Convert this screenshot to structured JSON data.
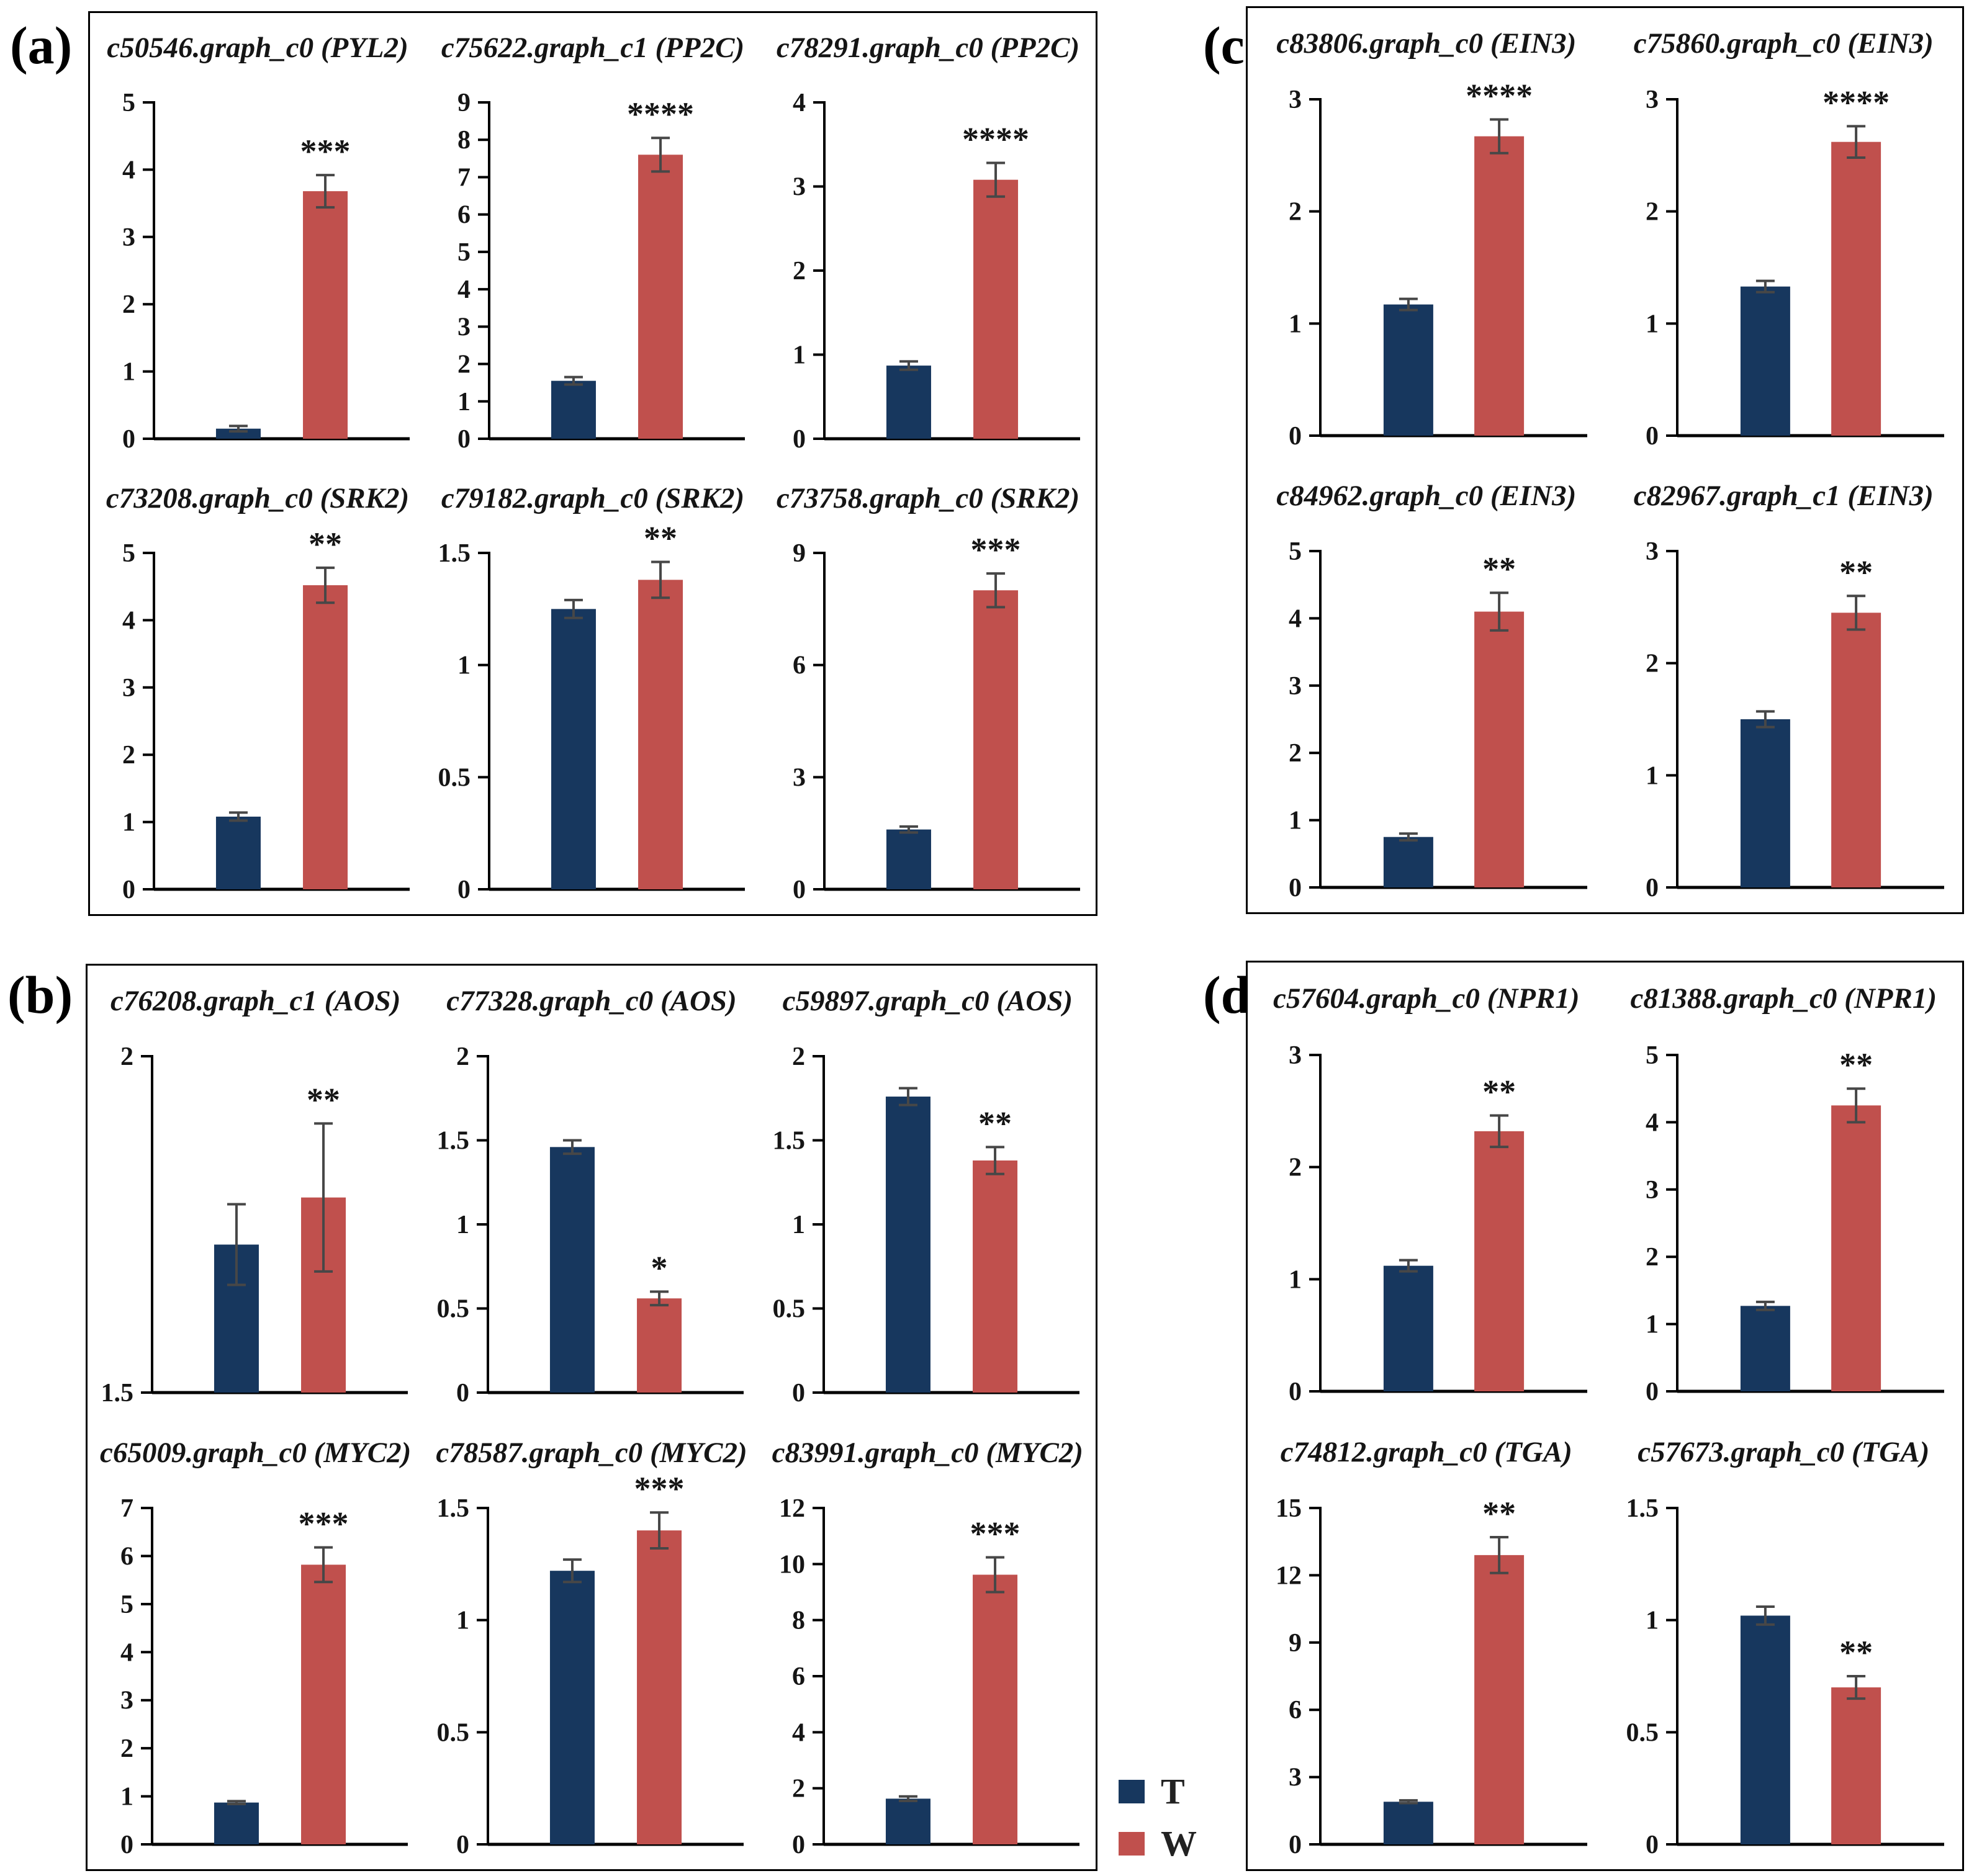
{
  "figure": {
    "panels": [
      {
        "label": "(a)",
        "columns": 3,
        "chart_indexes": [
          0,
          1,
          2,
          3,
          4,
          5
        ]
      },
      {
        "label": "(b)",
        "columns": 3,
        "chart_indexes": [
          6,
          7,
          8,
          9,
          10,
          11
        ]
      },
      {
        "label": "(c)",
        "columns": 2,
        "chart_indexes": [
          12,
          13,
          14,
          15
        ]
      },
      {
        "label": "(d)",
        "columns": 2,
        "chart_indexes": [
          16,
          17,
          18,
          19
        ]
      }
    ],
    "legend": {
      "items": [
        {
          "label": "T",
          "color": "#17375e"
        },
        {
          "label": "W",
          "color": "#c0504d"
        }
      ]
    },
    "colors": {
      "bar_t": "#17375e",
      "bar_w": "#c0504d",
      "error_bar": "#474747",
      "axis": "#000000",
      "text": "#151515"
    }
  },
  "chart_data": [
    {
      "panel": "a",
      "type": "bar",
      "title": "c50546.graph_c0 (PYL2)",
      "categories": [
        "T",
        "W"
      ],
      "series": [
        {
          "name": "T",
          "value": 0.15,
          "err": 0.04
        },
        {
          "name": "W",
          "value": 3.68,
          "err": 0.24
        }
      ],
      "significance": "***",
      "sig_on": "W",
      "ylim": [
        0,
        5
      ],
      "yticks": [
        0,
        1,
        2,
        3,
        4,
        5
      ]
    },
    {
      "panel": "a",
      "type": "bar",
      "title": "c75622.graph_c1 (PP2C)",
      "categories": [
        "T",
        "W"
      ],
      "series": [
        {
          "name": "T",
          "value": 1.55,
          "err": 0.1
        },
        {
          "name": "W",
          "value": 7.6,
          "err": 0.45
        }
      ],
      "significance": "****",
      "sig_on": "W",
      "ylim": [
        0,
        9
      ],
      "yticks": [
        0,
        1,
        2,
        3,
        4,
        5,
        6,
        7,
        8,
        9
      ]
    },
    {
      "panel": "a",
      "type": "bar",
      "title": "c78291.graph_c0 (PP2C)",
      "categories": [
        "T",
        "W"
      ],
      "series": [
        {
          "name": "T",
          "value": 0.87,
          "err": 0.05
        },
        {
          "name": "W",
          "value": 3.08,
          "err": 0.2
        }
      ],
      "significance": "****",
      "sig_on": "W",
      "ylim": [
        0,
        4
      ],
      "yticks": [
        0,
        1,
        2,
        3,
        4
      ]
    },
    {
      "panel": "a",
      "type": "bar",
      "title": "c73208.graph_c0 (SRK2)",
      "categories": [
        "T",
        "W"
      ],
      "series": [
        {
          "name": "T",
          "value": 1.08,
          "err": 0.06
        },
        {
          "name": "W",
          "value": 4.52,
          "err": 0.26
        }
      ],
      "significance": "**",
      "sig_on": "W",
      "ylim": [
        0,
        5
      ],
      "yticks": [
        0,
        1,
        2,
        3,
        4,
        5
      ]
    },
    {
      "panel": "a",
      "type": "bar",
      "title": "c79182.graph_c0 (SRK2)",
      "categories": [
        "T",
        "W"
      ],
      "series": [
        {
          "name": "T",
          "value": 1.25,
          "err": 0.04
        },
        {
          "name": "W",
          "value": 1.38,
          "err": 0.08
        }
      ],
      "significance": "**",
      "sig_on": "W",
      "ylim": [
        0,
        1.5
      ],
      "yticks": [
        0,
        0.5,
        1,
        1.5
      ]
    },
    {
      "panel": "a",
      "type": "bar",
      "title": "c73758.graph_c0 (SRK2)",
      "categories": [
        "T",
        "W"
      ],
      "series": [
        {
          "name": "T",
          "value": 1.6,
          "err": 0.08
        },
        {
          "name": "W",
          "value": 8.0,
          "err": 0.45
        }
      ],
      "significance": "***",
      "sig_on": "W",
      "ylim": [
        0,
        9
      ],
      "yticks": [
        0,
        3,
        6,
        9
      ]
    },
    {
      "panel": "b",
      "type": "bar",
      "title": "c76208.graph_c1 (AOS)",
      "categories": [
        "T",
        "W"
      ],
      "series": [
        {
          "name": "T",
          "value": 1.72,
          "err": 0.06
        },
        {
          "name": "W",
          "value": 1.79,
          "err": 0.11
        }
      ],
      "significance": "**",
      "sig_on": "W",
      "ylim": [
        1.5,
        2
      ],
      "yticks": [
        1.5,
        2
      ]
    },
    {
      "panel": "b",
      "type": "bar",
      "title": "c77328.graph_c0 (AOS)",
      "categories": [
        "T",
        "W"
      ],
      "series": [
        {
          "name": "T",
          "value": 1.46,
          "err": 0.04
        },
        {
          "name": "W",
          "value": 0.56,
          "err": 0.04
        }
      ],
      "significance": "*",
      "sig_on": "W",
      "ylim": [
        0,
        2
      ],
      "yticks": [
        0,
        0.5,
        1,
        1.5,
        2
      ]
    },
    {
      "panel": "b",
      "type": "bar",
      "title": "c59897.graph_c0 (AOS)",
      "categories": [
        "T",
        "W"
      ],
      "series": [
        {
          "name": "T",
          "value": 1.76,
          "err": 0.05
        },
        {
          "name": "W",
          "value": 1.38,
          "err": 0.08
        }
      ],
      "significance": "**",
      "sig_on": "W",
      "ylim": [
        0,
        2
      ],
      "yticks": [
        0,
        0.5,
        1,
        1.5,
        2
      ]
    },
    {
      "panel": "b",
      "type": "bar",
      "title": "c65009.graph_c0 (MYC2)",
      "categories": [
        "T",
        "W"
      ],
      "series": [
        {
          "name": "T",
          "value": 0.87,
          "err": 0.03
        },
        {
          "name": "W",
          "value": 5.82,
          "err": 0.36
        }
      ],
      "significance": "***",
      "sig_on": "W",
      "ylim": [
        0,
        7
      ],
      "yticks": [
        0,
        1,
        2,
        3,
        4,
        5,
        6,
        7
      ]
    },
    {
      "panel": "b",
      "type": "bar",
      "title": "c78587.graph_c0 (MYC2)",
      "categories": [
        "T",
        "W"
      ],
      "series": [
        {
          "name": "T",
          "value": 1.22,
          "err": 0.05
        },
        {
          "name": "W",
          "value": 1.4,
          "err": 0.08
        }
      ],
      "significance": "***",
      "sig_on": "W",
      "ylim": [
        0,
        1.5
      ],
      "yticks": [
        0,
        0.5,
        1,
        1.5
      ]
    },
    {
      "panel": "b",
      "type": "bar",
      "title": "c83991.graph_c0 (MYC2)",
      "categories": [
        "T",
        "W"
      ],
      "series": [
        {
          "name": "T",
          "value": 1.63,
          "err": 0.08
        },
        {
          "name": "W",
          "value": 9.62,
          "err": 0.62
        }
      ],
      "significance": "***",
      "sig_on": "W",
      "ylim": [
        0,
        12
      ],
      "yticks": [
        0,
        2,
        4,
        6,
        8,
        10,
        12
      ]
    },
    {
      "panel": "c",
      "type": "bar",
      "title": "c83806.graph_c0 (EIN3)",
      "categories": [
        "T",
        "W"
      ],
      "series": [
        {
          "name": "T",
          "value": 1.17,
          "err": 0.05
        },
        {
          "name": "W",
          "value": 2.67,
          "err": 0.15
        }
      ],
      "significance": "****",
      "sig_on": "W",
      "ylim": [
        0,
        3
      ],
      "yticks": [
        0,
        1,
        2,
        3
      ]
    },
    {
      "panel": "c",
      "type": "bar",
      "title": "c75860.graph_c0 (EIN3)",
      "categories": [
        "T",
        "W"
      ],
      "series": [
        {
          "name": "T",
          "value": 1.33,
          "err": 0.05
        },
        {
          "name": "W",
          "value": 2.62,
          "err": 0.14
        }
      ],
      "significance": "****",
      "sig_on": "W",
      "ylim": [
        0,
        3
      ],
      "yticks": [
        0,
        1,
        2,
        3
      ]
    },
    {
      "panel": "c",
      "type": "bar",
      "title": "c84962.graph_c0 (EIN3)",
      "categories": [
        "T",
        "W"
      ],
      "series": [
        {
          "name": "T",
          "value": 0.75,
          "err": 0.05
        },
        {
          "name": "W",
          "value": 4.1,
          "err": 0.28
        }
      ],
      "significance": "**",
      "sig_on": "W",
      "ylim": [
        0,
        5
      ],
      "yticks": [
        0,
        1,
        2,
        3,
        4,
        5
      ]
    },
    {
      "panel": "c",
      "type": "bar",
      "title": "c82967.graph_c1 (EIN3)",
      "categories": [
        "T",
        "W"
      ],
      "series": [
        {
          "name": "T",
          "value": 1.5,
          "err": 0.07
        },
        {
          "name": "W",
          "value": 2.45,
          "err": 0.15
        }
      ],
      "significance": "**",
      "sig_on": "W",
      "ylim": [
        0,
        3
      ],
      "yticks": [
        0,
        1,
        2,
        3
      ]
    },
    {
      "panel": "d",
      "type": "bar",
      "title": "c57604.graph_c0 (NPR1)",
      "categories": [
        "T",
        "W"
      ],
      "series": [
        {
          "name": "T",
          "value": 1.12,
          "err": 0.05
        },
        {
          "name": "W",
          "value": 2.32,
          "err": 0.14
        }
      ],
      "significance": "**",
      "sig_on": "W",
      "ylim": [
        0,
        3
      ],
      "yticks": [
        0,
        1,
        2,
        3
      ]
    },
    {
      "panel": "d",
      "type": "bar",
      "title": "c81388.graph_c0 (NPR1)",
      "categories": [
        "T",
        "W"
      ],
      "series": [
        {
          "name": "T",
          "value": 1.27,
          "err": 0.06
        },
        {
          "name": "W",
          "value": 4.25,
          "err": 0.25
        }
      ],
      "significance": "**",
      "sig_on": "W",
      "ylim": [
        0,
        5
      ],
      "yticks": [
        0,
        1,
        2,
        3,
        4,
        5
      ]
    },
    {
      "panel": "d",
      "type": "bar",
      "title": "c74812.graph_c0 (TGA)",
      "categories": [
        "T",
        "W"
      ],
      "series": [
        {
          "name": "T",
          "value": 1.9,
          "err": 0.06
        },
        {
          "name": "W",
          "value": 12.9,
          "err": 0.8
        }
      ],
      "significance": "**",
      "sig_on": "W",
      "ylim": [
        0,
        15
      ],
      "yticks": [
        0,
        3,
        6,
        9,
        12,
        15
      ]
    },
    {
      "panel": "d",
      "type": "bar",
      "title": "c57673.graph_c0 (TGA)",
      "categories": [
        "T",
        "W"
      ],
      "series": [
        {
          "name": "T",
          "value": 1.02,
          "err": 0.04
        },
        {
          "name": "W",
          "value": 0.7,
          "err": 0.05
        }
      ],
      "significance": "**",
      "sig_on": "W",
      "ylim": [
        0,
        1.5
      ],
      "yticks": [
        0,
        0.5,
        1,
        1.5
      ]
    }
  ]
}
